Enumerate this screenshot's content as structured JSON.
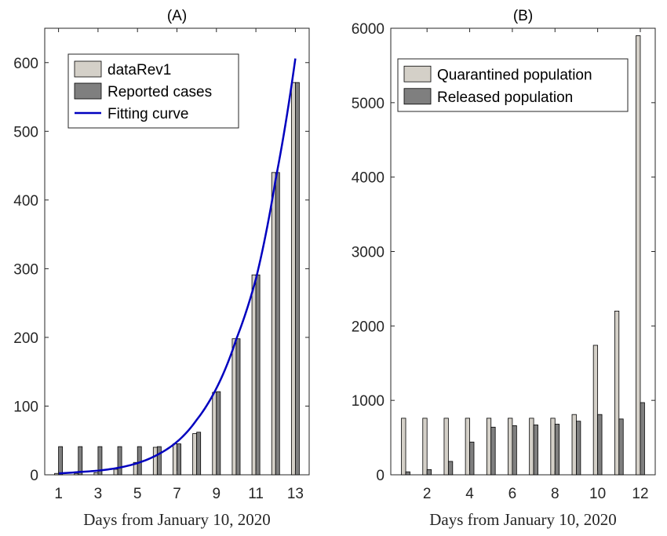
{
  "chart_data": [
    {
      "type": "bar",
      "title": "(A)",
      "xlabel": "Days from January 10, 2020",
      "ylabel": "",
      "xlim": [
        0.3,
        13.7
      ],
      "ylim": [
        0,
        650
      ],
      "xticks": [
        "1",
        "3",
        "5",
        "7",
        "9",
        "11",
        "13"
      ],
      "yticks": [
        "0",
        "100",
        "200",
        "300",
        "400",
        "500",
        "600"
      ],
      "grid": false,
      "legend_position": "top-left",
      "x": [
        1,
        2,
        3,
        4,
        5,
        6,
        7,
        8,
        9,
        10,
        11,
        12,
        13
      ],
      "series": [
        {
          "name": "dataRev1",
          "color": "#d4d0c8",
          "values": [
            2,
            2,
            3,
            8,
            18,
            40,
            45,
            60,
            120,
            198,
            291,
            440,
            571
          ]
        },
        {
          "name": "Reported cases",
          "color": "#7f7f7f",
          "values": [
            41,
            41,
            41,
            41,
            41,
            41,
            45,
            62,
            121,
            198,
            291,
            440,
            571
          ]
        },
        {
          "name": "Fitting curve",
          "color": "#0000bf",
          "type": "line",
          "x": [
            1,
            2,
            3,
            4,
            5,
            6,
            7,
            8,
            9,
            10,
            11,
            12,
            13
          ],
          "values": [
            2,
            4,
            6,
            10,
            17,
            29,
            48,
            80,
            126,
            197,
            285,
            430,
            606
          ]
        }
      ]
    },
    {
      "type": "bar",
      "title": "(B)",
      "xlabel": "Days from January 10, 2020",
      "ylabel": "",
      "xlim": [
        0.3,
        12.7
      ],
      "ylim": [
        0,
        6000
      ],
      "xticks": [
        "2",
        "4",
        "6",
        "8",
        "10",
        "12"
      ],
      "yticks": [
        "0",
        "1000",
        "2000",
        "3000",
        "4000",
        "5000",
        "6000"
      ],
      "grid": false,
      "legend_position": "top-right",
      "x": [
        1,
        2,
        3,
        4,
        5,
        6,
        7,
        8,
        9,
        10,
        11,
        12
      ],
      "series": [
        {
          "name": "Quarantined population",
          "color": "#d4d0c8",
          "values": [
            760,
            760,
            760,
            760,
            760,
            760,
            760,
            760,
            810,
            1740,
            2200,
            5900
          ]
        },
        {
          "name": "Released population",
          "color": "#7f7f7f",
          "values": [
            40,
            70,
            180,
            440,
            640,
            660,
            670,
            680,
            720,
            810,
            750,
            970
          ]
        }
      ]
    }
  ]
}
